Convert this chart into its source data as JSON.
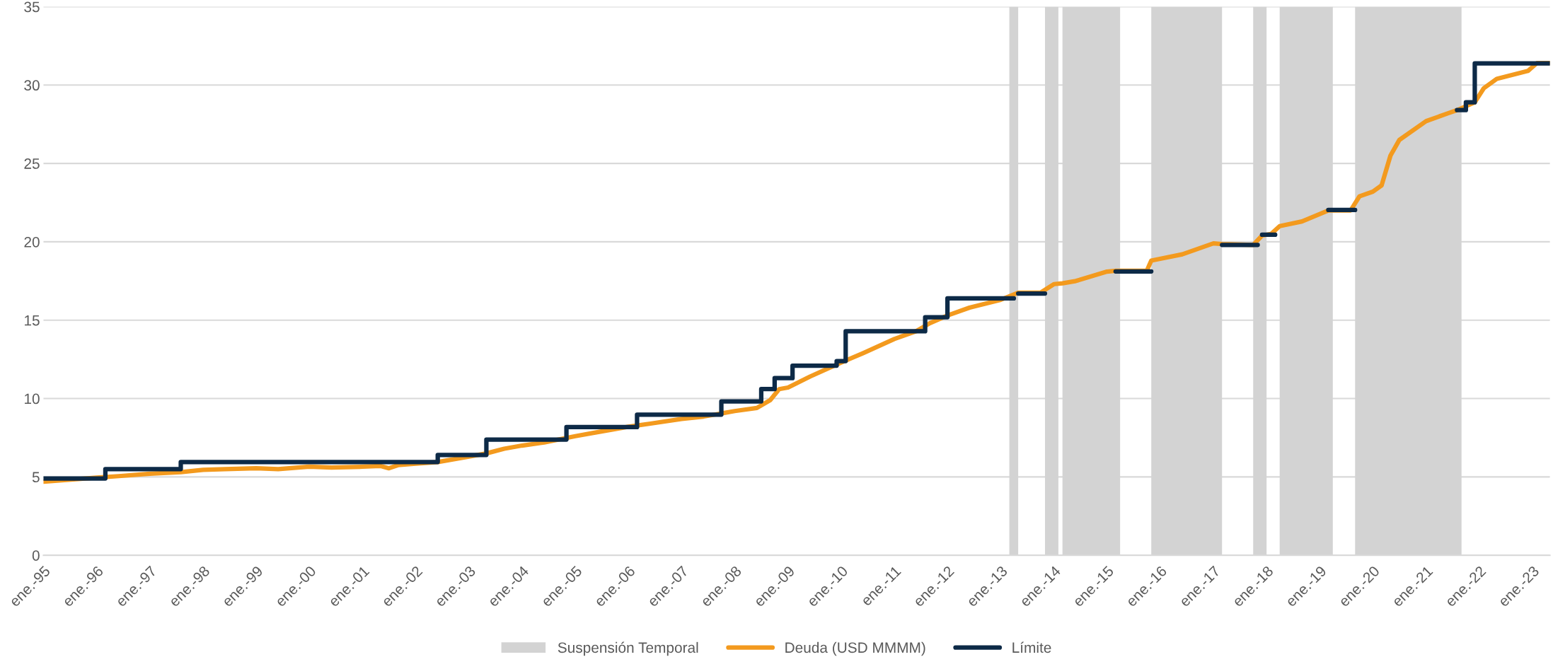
{
  "chart_data": {
    "type": "line",
    "series": [
      {
        "name": "Deuda (USD MMMM)",
        "color": "#f39a1e",
        "x": [
          "1995-01",
          "1996-01",
          "1996-06",
          "1997-01",
          "1997-08",
          "1998-01",
          "1998-06",
          "1999-01",
          "1999-06",
          "2000-01",
          "2000-06",
          "2001-01",
          "2001-05",
          "2001-07",
          "2001-09",
          "2002-01",
          "2002-06",
          "2003-01",
          "2003-05",
          "2003-09",
          "2004-01",
          "2004-06",
          "2005-01",
          "2005-06",
          "2006-01",
          "2006-06",
          "2007-01",
          "2007-06",
          "2008-01",
          "2008-06",
          "2008-09",
          "2008-11",
          "2009-01",
          "2009-06",
          "2010-01",
          "2010-06",
          "2011-01",
          "2011-06",
          "2011-09",
          "2012-01",
          "2012-06",
          "2013-01",
          "2013-05",
          "2013-10",
          "2014-01",
          "2014-03",
          "2014-06",
          "2015-01",
          "2015-03",
          "2015-10",
          "2015-11",
          "2016-06",
          "2017-01",
          "2017-03",
          "2017-10",
          "2017-12",
          "2018-02",
          "2018-04",
          "2018-09",
          "2019-03",
          "2019-08",
          "2019-10",
          "2020-01",
          "2020-03",
          "2020-05",
          "2020-07",
          "2021-01",
          "2021-06",
          "2021-08",
          "2021-12",
          "2022-02",
          "2022-05",
          "2022-12",
          "2023-02",
          "2023-05"
        ],
        "values": [
          4.7,
          4.95,
          5.05,
          5.2,
          5.3,
          5.45,
          5.5,
          5.55,
          5.5,
          5.65,
          5.6,
          5.65,
          5.7,
          5.55,
          5.75,
          5.85,
          5.95,
          6.3,
          6.5,
          6.8,
          7.0,
          7.2,
          7.6,
          7.85,
          8.2,
          8.4,
          8.7,
          8.85,
          9.2,
          9.4,
          9.9,
          10.6,
          10.7,
          11.4,
          12.3,
          12.9,
          13.8,
          14.3,
          14.8,
          15.3,
          15.8,
          16.3,
          16.75,
          16.75,
          17.3,
          17.35,
          17.5,
          18.1,
          18.15,
          18.15,
          18.8,
          19.2,
          19.9,
          19.85,
          19.8,
          20.4,
          20.5,
          21.0,
          21.3,
          22.0,
          22.0,
          22.9,
          23.2,
          23.6,
          25.5,
          26.5,
          27.7,
          28.2,
          28.4,
          28.9,
          29.8,
          30.4,
          30.9,
          31.4,
          31.4
        ]
      },
      {
        "name": "Límite",
        "color": "#0d2a47",
        "type": "step",
        "x": [
          "1995-01",
          "1996-03",
          "1997-08",
          "2002-06",
          "2003-05",
          "2004-11",
          "2006-03",
          "2007-10",
          "2008-07",
          "2008-10",
          "2009-02",
          "2009-12",
          "2010-02",
          "2011-08",
          "2012-01",
          "2013-03",
          "2013-04",
          "2013-05",
          "2013-10",
          "2013-11",
          "2015-03",
          "2015-10",
          "2015-11",
          "2017-03",
          "2017-10",
          "2017-11",
          "2017-12",
          "2018-02",
          "2018-03",
          "2019-03",
          "2019-08",
          "2019-09",
          "2021-08",
          "2021-10",
          "2021-12",
          "2023-05"
        ],
        "values": [
          4.9,
          5.5,
          5.95,
          6.4,
          7.38,
          8.18,
          8.97,
          9.82,
          10.6,
          11.3,
          12.1,
          12.39,
          14.29,
          15.19,
          16.39,
          16.39,
          null,
          16.7,
          16.7,
          null,
          18.11,
          18.11,
          null,
          19.8,
          19.8,
          null,
          20.45,
          20.45,
          null,
          22.03,
          22.03,
          null,
          28.4,
          28.9,
          31.38,
          31.38
        ]
      }
    ],
    "bands": [
      {
        "axis": "x",
        "from": "2013-03",
        "to": "2013-05",
        "label": "Suspensión Temporal",
        "color": "#d3d3d3"
      },
      {
        "axis": "x",
        "from": "2013-11",
        "to": "2014-02",
        "color": "#d3d3d3"
      },
      {
        "axis": "x",
        "from": "2014-03",
        "to": "2015-04",
        "color": "#d3d3d3"
      },
      {
        "axis": "x",
        "from": "2015-11",
        "to": "2017-03",
        "color": "#d3d3d3"
      },
      {
        "axis": "x",
        "from": "2017-10",
        "to": "2018-01",
        "color": "#d3d3d3"
      },
      {
        "axis": "x",
        "from": "2018-04",
        "to": "2019-04",
        "color": "#d3d3d3"
      },
      {
        "axis": "x",
        "from": "2019-09",
        "to": "2021-09",
        "color": "#d3d3d3"
      }
    ],
    "xlim": [
      "1995-01",
      "2023-05"
    ],
    "xticks": [
      {
        "value": "1995-01",
        "label": "ene.-95"
      },
      {
        "value": "1996-01",
        "label": "ene.-96"
      },
      {
        "value": "1997-01",
        "label": "ene.-97"
      },
      {
        "value": "1998-01",
        "label": "ene.-98"
      },
      {
        "value": "1999-01",
        "label": "ene.-99"
      },
      {
        "value": "2000-01",
        "label": "ene.-00"
      },
      {
        "value": "2001-01",
        "label": "ene.-01"
      },
      {
        "value": "2002-01",
        "label": "ene.-02"
      },
      {
        "value": "2003-01",
        "label": "ene.-03"
      },
      {
        "value": "2004-01",
        "label": "ene.-04"
      },
      {
        "value": "2005-01",
        "label": "ene.-05"
      },
      {
        "value": "2006-01",
        "label": "ene.-06"
      },
      {
        "value": "2007-01",
        "label": "ene.-07"
      },
      {
        "value": "2008-01",
        "label": "ene.-08"
      },
      {
        "value": "2009-01",
        "label": "ene.-09"
      },
      {
        "value": "2010-01",
        "label": "ene.-10"
      },
      {
        "value": "2011-01",
        "label": "ene.-11"
      },
      {
        "value": "2012-01",
        "label": "ene.-12"
      },
      {
        "value": "2013-01",
        "label": "ene.-13"
      },
      {
        "value": "2014-01",
        "label": "ene.-14"
      },
      {
        "value": "2015-01",
        "label": "ene.-15"
      },
      {
        "value": "2016-01",
        "label": "ene.-16"
      },
      {
        "value": "2017-01",
        "label": "ene.-17"
      },
      {
        "value": "2018-01",
        "label": "ene.-18"
      },
      {
        "value": "2019-01",
        "label": "ene.-19"
      },
      {
        "value": "2020-01",
        "label": "ene.-20"
      },
      {
        "value": "2021-01",
        "label": "ene.-21"
      },
      {
        "value": "2022-01",
        "label": "ene.-22"
      },
      {
        "value": "2023-01",
        "label": "ene.-23"
      }
    ],
    "ylim": [
      0,
      35
    ],
    "yticks": [
      0,
      5,
      10,
      15,
      20,
      25,
      30,
      35
    ],
    "grid": "y",
    "legend": "bottom"
  }
}
